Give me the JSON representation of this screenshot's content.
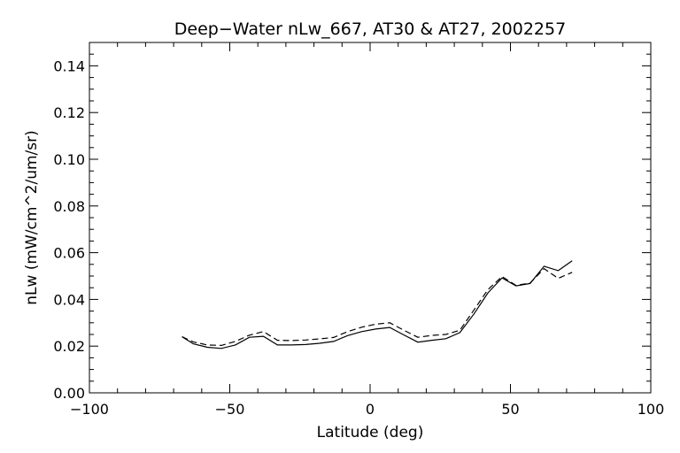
{
  "chart_data": {
    "type": "line",
    "title": "Deep−Water nLw_667, AT30 & AT27, 2002257",
    "xlabel": "Latitude (deg)",
    "ylabel": "nLw (mW/cm^2/um/sr)",
    "xlim": [
      -100,
      100
    ],
    "ylim": [
      0.0,
      0.15
    ],
    "x_ticks": [
      -100,
      -50,
      0,
      50,
      100
    ],
    "x_tick_labels": [
      "−100",
      "−50",
      "0",
      "50",
      "100"
    ],
    "y_ticks": [
      0.0,
      0.02,
      0.04,
      0.06,
      0.08,
      0.1,
      0.12,
      0.14
    ],
    "y_tick_labels": [
      "0.00",
      "0.02",
      "0.04",
      "0.06",
      "0.08",
      "0.10",
      "0.12",
      "0.14"
    ],
    "grid": false,
    "series": [
      {
        "style": "solid",
        "x": [
          -67,
          -63,
          -58,
          -53,
          -48,
          -43,
          -38,
          -33,
          -28,
          -23,
          -18,
          -13,
          -8,
          -3,
          2,
          7,
          12,
          17,
          22,
          27,
          32,
          37,
          42,
          47,
          52,
          57,
          62,
          67,
          72
        ],
        "y": [
          0.024,
          0.021,
          0.0195,
          0.019,
          0.0205,
          0.0238,
          0.0242,
          0.0205,
          0.0205,
          0.0207,
          0.0212,
          0.022,
          0.0245,
          0.0262,
          0.0273,
          0.028,
          0.0248,
          0.0217,
          0.0225,
          0.0232,
          0.0258,
          0.0338,
          0.0428,
          0.0492,
          0.0458,
          0.0468,
          0.0542,
          0.0523,
          0.0565
        ]
      },
      {
        "style": "dashed",
        "x": [
          -67,
          -63,
          -58,
          -53,
          -48,
          -43,
          -38,
          -33,
          -28,
          -23,
          -18,
          -13,
          -8,
          -3,
          2,
          7,
          12,
          17,
          22,
          27,
          32,
          37,
          42,
          47,
          52,
          57,
          62,
          67,
          72
        ],
        "y": [
          0.024,
          0.0218,
          0.0205,
          0.0203,
          0.022,
          0.0247,
          0.0262,
          0.0225,
          0.0224,
          0.0226,
          0.0231,
          0.0237,
          0.0262,
          0.0281,
          0.0294,
          0.03,
          0.0268,
          0.0238,
          0.0246,
          0.025,
          0.0268,
          0.0355,
          0.0442,
          0.0498,
          0.046,
          0.047,
          0.0532,
          0.049,
          0.0516
        ]
      }
    ]
  }
}
